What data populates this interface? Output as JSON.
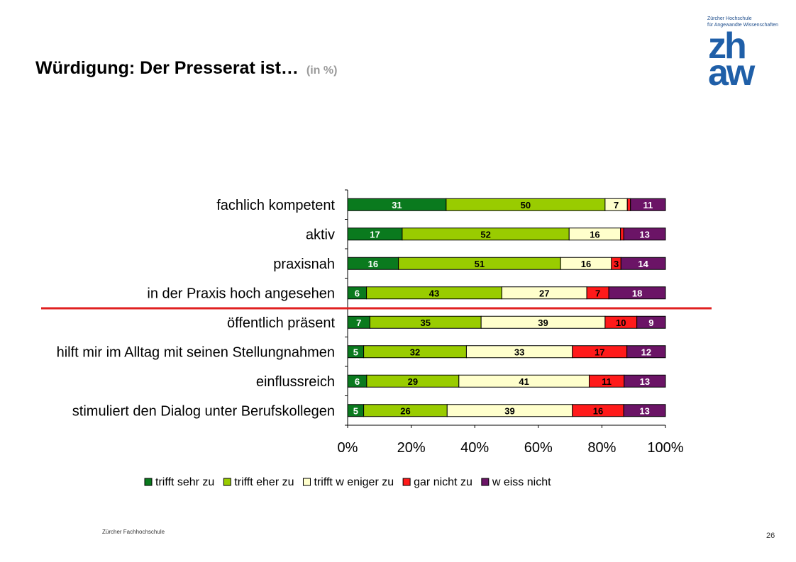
{
  "page": {
    "title": "Würdigung: Der Presserat ist…",
    "title_suffix": "(in %)",
    "footer": "Zürcher Fachhochschule",
    "page_number": "26"
  },
  "logo": {
    "line1": "Zürcher Hochschule",
    "line2": "für Angewandte Wissenschaften",
    "mark_line1": "zh",
    "mark_line2": "aw"
  },
  "colors": {
    "marker_line": "#e02020"
  },
  "chart_data": {
    "type": "bar",
    "orientation": "horizontal",
    "stacked": "percent",
    "categories": [
      "fachlich kompetent",
      "aktiv",
      "praxisnah",
      "in der Praxis hoch angesehen",
      "öffentlich präsent",
      "hilft mir im Alltag mit seinen Stellungnahmen",
      "einflussreich",
      "stimuliert den Dialog unter Berufskollegen"
    ],
    "series": [
      {
        "name": "trifft sehr zu",
        "color": "#0a7a1e",
        "label_color": "#ffffff",
        "values": [
          31,
          17,
          16,
          6,
          7,
          5,
          6,
          5
        ],
        "labels": [
          "31",
          "17",
          "16",
          "6",
          "7",
          "5",
          "6",
          "5"
        ]
      },
      {
        "name": "trifft eher zu",
        "color": "#99cc00",
        "label_color": "#000000",
        "values": [
          50,
          52,
          51,
          43,
          35,
          32,
          29,
          26
        ],
        "labels": [
          "50",
          "52",
          "51",
          "43",
          "35",
          "32",
          "29",
          "26"
        ]
      },
      {
        "name": "trifft w eniger zu",
        "color": "#ffffcc",
        "label_color": "#000000",
        "values": [
          7,
          16,
          16,
          27,
          39,
          33,
          41,
          39
        ],
        "labels": [
          "7",
          "16",
          "16",
          "27",
          "39",
          "33",
          "41",
          "39"
        ]
      },
      {
        "name": "gar nicht zu",
        "color": "#ff1a1a",
        "label_color": "#000000",
        "values": [
          1,
          1,
          3,
          7,
          10,
          17,
          11,
          16
        ],
        "labels": [
          "",
          "",
          "3",
          "7",
          "10",
          "17",
          "11",
          "16"
        ]
      },
      {
        "name": "w eiss nicht",
        "color": "#6b1466",
        "label_color": "#ffffff",
        "values": [
          11,
          13,
          14,
          18,
          9,
          12,
          13,
          13
        ],
        "labels": [
          "11",
          "13",
          "14",
          "18",
          "9",
          "12",
          "13",
          "13"
        ]
      }
    ],
    "xticks": [
      "0%",
      "20%",
      "40%",
      "60%",
      "80%",
      "100%"
    ],
    "xlim": [
      0,
      100
    ],
    "grid": false,
    "legend": "bottom"
  }
}
